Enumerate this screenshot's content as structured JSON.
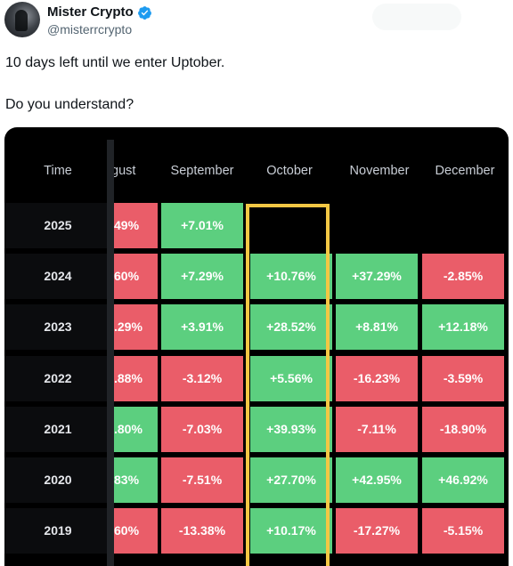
{
  "author": {
    "name": "Mister Crypto",
    "handle": "@misterrcrypto",
    "verified_icon": "verified-badge-icon",
    "verified_color": "#1d9bf0"
  },
  "tweet": {
    "line1": "10 days left until we enter Uptober.",
    "line2": "Do you understand?"
  },
  "table": {
    "headers": [
      "Time",
      "gust",
      "September",
      "October",
      "November",
      "December"
    ],
    "rows": [
      {
        "year": "2025",
        "cells": [
          "49%",
          "+7.01%",
          "",
          "",
          ""
        ]
      },
      {
        "year": "2024",
        "cells": [
          "60%",
          "+7.29%",
          "+10.76%",
          "+37.29%",
          "-2.85%"
        ]
      },
      {
        "year": "2023",
        "cells": ".29%",
        "cells_all": [
          ".29%",
          "+3.91%",
          "+28.52%",
          "+8.81%",
          "+12.18%"
        ]
      },
      {
        "year": "2022",
        "cells_all": [
          ".88%",
          "-3.12%",
          "+5.56%",
          "-16.23%",
          "-3.59%"
        ]
      },
      {
        "year": "2021",
        "cells_all": [
          ".80%",
          "-7.03%",
          "+39.93%",
          "-7.11%",
          "-18.90%"
        ]
      },
      {
        "year": "2020",
        "cells_all": [
          "83%",
          "-7.51%",
          "+27.70%",
          "+42.95%",
          "+46.92%"
        ]
      },
      {
        "year": "2019",
        "cells_all": [
          "60%",
          "-13.38%",
          "+10.17%",
          "-17.27%",
          "-5.15%"
        ]
      }
    ],
    "colors": {
      "positive": "#5ccf7f",
      "negative": "#ea5d69",
      "highlight": "#f3c744"
    }
  }
}
